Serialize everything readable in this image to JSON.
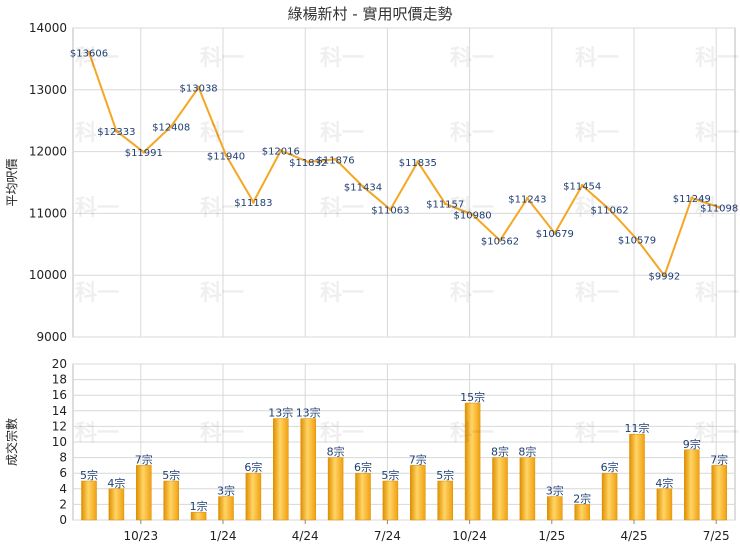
{
  "chart_title": "綠楊新村 - 實用呎價走勢",
  "chart_data": [
    {
      "type": "line",
      "title": "綠楊新村 - 實用呎價走勢",
      "ylabel": "平均呎價",
      "ylim": [
        9000,
        14000
      ],
      "yticks": [
        9000,
        10000,
        11000,
        12000,
        13000,
        14000
      ],
      "grid": true,
      "color": "#f5a623",
      "value_prefix": "$",
      "series": [
        {
          "values": [
            13606,
            12333,
            11991,
            12408,
            13038,
            11940,
            11183,
            12016,
            11832,
            11876,
            11434,
            11063,
            11835,
            11157,
            10980,
            10562,
            11243,
            10679,
            11454,
            11062,
            10579,
            9992,
            11249,
            11098
          ]
        }
      ]
    },
    {
      "type": "bar",
      "ylabel": "成交宗數",
      "ylim": [
        0,
        20
      ],
      "yticks": [
        0,
        2,
        4,
        6,
        8,
        10,
        12,
        14,
        16,
        18,
        20
      ],
      "grid": true,
      "color": "#f2a516",
      "value_suffix": "宗",
      "values": [
        5,
        4,
        7,
        5,
        1,
        3,
        6,
        13,
        13,
        8,
        6,
        5,
        7,
        5,
        15,
        8,
        8,
        3,
        2,
        6,
        11,
        4,
        9,
        7
      ],
      "x_tick_labels": [
        "10/23",
        "1/24",
        "4/24",
        "7/24",
        "10/24",
        "1/25",
        "4/25",
        "7/25"
      ]
    }
  ],
  "watermark_text": "科一"
}
